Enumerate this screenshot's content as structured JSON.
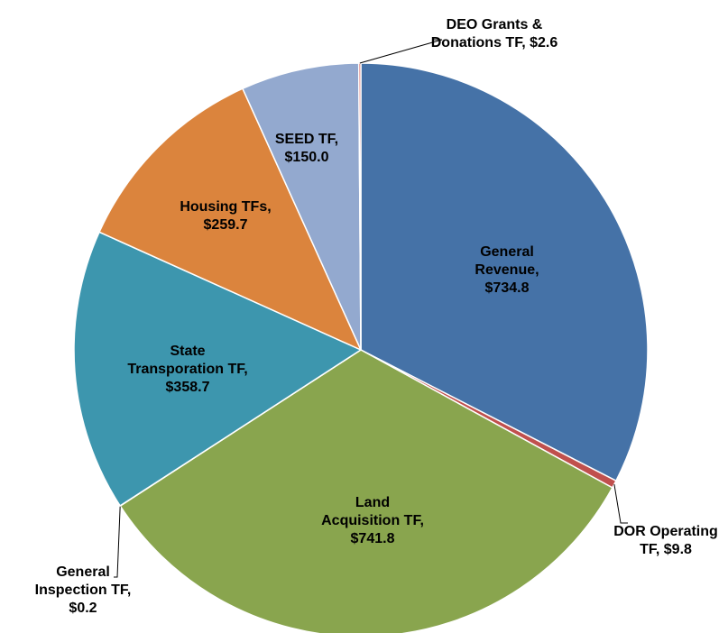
{
  "chart_data": {
    "type": "pie",
    "categories": [
      "General Revenue,",
      "DOR Operating TF,",
      "Land Acquisition TF,",
      "General Inspection TF,",
      "State Transporation TF,",
      "Housing TFs,",
      "SEED TF,",
      "DEO Grants & Donations TF,"
    ],
    "values": [
      734.8,
      9.8,
      741.8,
      0.2,
      358.7,
      259.7,
      150.0,
      2.6
    ],
    "value_labels": [
      "$734.8",
      "$9.8",
      "$741.8",
      "$0.2",
      "$358.7",
      "$259.7",
      "$150.0",
      "$2.6"
    ],
    "colors": [
      "#4572a7",
      "#c0504d",
      "#89a54e",
      "#6e8f3a",
      "#3d96ae",
      "#db843d",
      "#93a9cf",
      "#d9645f"
    ]
  }
}
